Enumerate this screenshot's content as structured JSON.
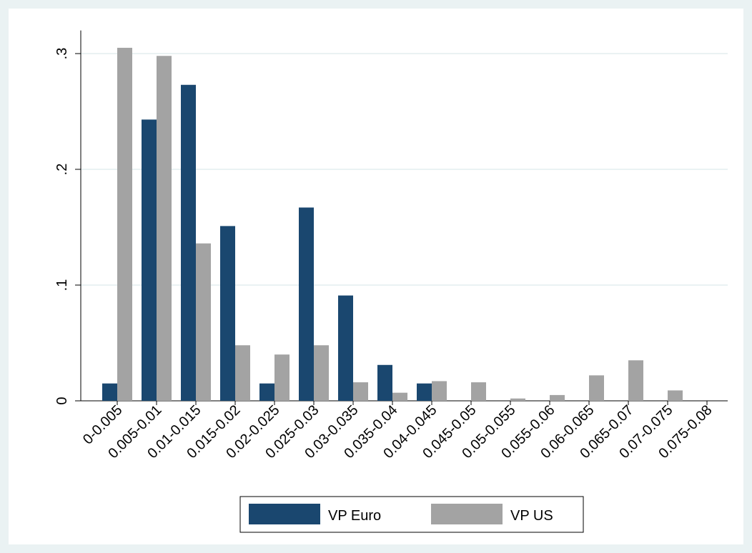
{
  "chart_data": {
    "type": "bar",
    "categories": [
      "0-0.005",
      "0.005-0.01",
      "0.01-0.015",
      "0.015-0.02",
      "0.02-0.025",
      "0.025-0.03",
      "0.03-0.035",
      "0.035-0.04",
      "0.04-0.045",
      "0.045-0.05",
      "0.05-0.055",
      "0.055-0.06",
      "0.06-0.065",
      "0.065-0.07",
      "0.07-0.075",
      "0.075-0.08"
    ],
    "series": [
      {
        "name": "VP Euro",
        "color": "#1a476f",
        "values": [
          0.015,
          0.243,
          0.273,
          0.151,
          0.015,
          0.167,
          0.091,
          0.031,
          0.015,
          0,
          0,
          0,
          0,
          0,
          0,
          0
        ]
      },
      {
        "name": "VP US",
        "color": "#a3a3a3",
        "values": [
          0.305,
          0.298,
          0.136,
          0.048,
          0.04,
          0.048,
          0.016,
          0.007,
          0.017,
          0.016,
          0.002,
          0.005,
          0.022,
          0.035,
          0.009,
          0
        ]
      }
    ],
    "ylim": [
      0,
      0.32
    ],
    "yticks": [
      0,
      {
        "value": 0.1,
        "label": ".1"
      },
      {
        "value": 0.2,
        "label": ".2"
      },
      {
        "value": 0.3,
        "label": ".3"
      }
    ],
    "grid": true,
    "legend_position": "bottom"
  }
}
